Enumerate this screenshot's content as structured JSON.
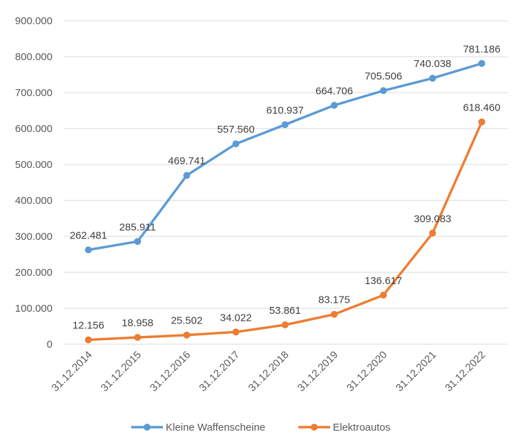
{
  "chart_data": {
    "type": "line",
    "title": "",
    "xlabel": "",
    "ylabel": "",
    "ylim": [
      0,
      900000
    ],
    "grid": true,
    "legend_position": "bottom",
    "categories": [
      "31.12.2014",
      "31.12.2015",
      "31.12.2016",
      "31.12.2017",
      "31.12.2018",
      "31.12.2019",
      "31.12.2020",
      "31.12.2021",
      "31.12.2022"
    ],
    "y_ticks": [
      {
        "value": 0,
        "label": "0"
      },
      {
        "value": 100000,
        "label": "100.000"
      },
      {
        "value": 200000,
        "label": "200.000"
      },
      {
        "value": 300000,
        "label": "300.000"
      },
      {
        "value": 400000,
        "label": "400.000"
      },
      {
        "value": 500000,
        "label": "500.000"
      },
      {
        "value": 600000,
        "label": "600.000"
      },
      {
        "value": 700000,
        "label": "700.000"
      },
      {
        "value": 800000,
        "label": "800.000"
      },
      {
        "value": 900000,
        "label": "900.000"
      }
    ],
    "series": [
      {
        "name": "Kleine Waffenscheine",
        "color": "#5B9BD5",
        "values": [
          262481,
          285911,
          469741,
          557560,
          610937,
          664706,
          705506,
          740038,
          781186
        ],
        "labels": [
          "262.481",
          "285.911",
          "469.741",
          "557.560",
          "610.937",
          "664.706",
          "705.506",
          "740.038",
          "781.186"
        ]
      },
      {
        "name": "Elektroautos",
        "color": "#ED7D31",
        "values": [
          12156,
          18958,
          25502,
          34022,
          53861,
          83175,
          136617,
          309083,
          618460
        ],
        "labels": [
          "12.156",
          "18.958",
          "25.502",
          "34.022",
          "53.861",
          "83.175",
          "136.617",
          "309.083",
          "618.460"
        ]
      }
    ]
  }
}
